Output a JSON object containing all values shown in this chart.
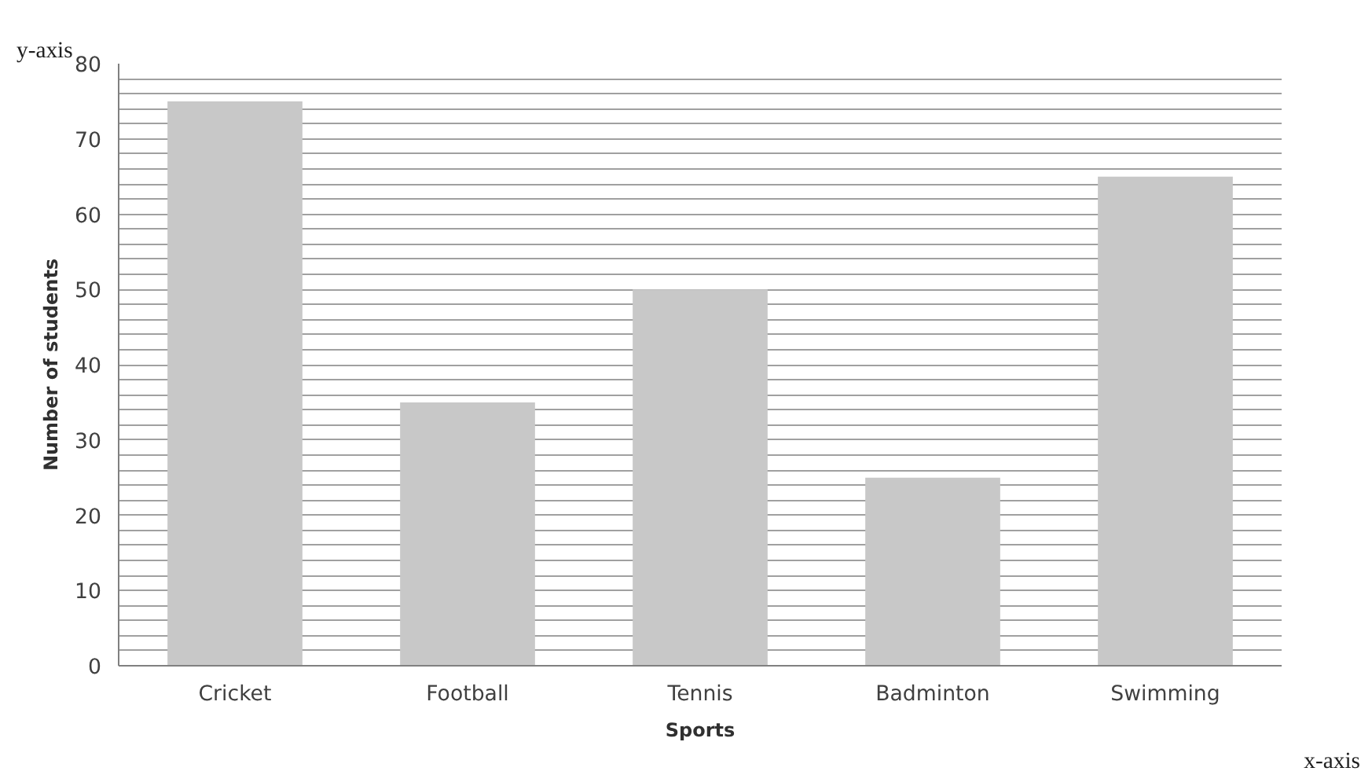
{
  "chart_data": {
    "type": "bar",
    "categories": [
      "Cricket",
      "Football",
      "Tennis",
      "Badminton",
      "Swimming"
    ],
    "values": [
      75,
      35,
      50,
      25,
      65
    ],
    "color": "#c8c8c8",
    "xlabel": "Sports",
    "ylabel": "Number of students",
    "annotations": [
      "y-axis",
      "x-axis"
    ],
    "ylim": [
      0,
      80
    ],
    "yticks": [
      0,
      {
        "value": 2,
        "label": null
      },
      {
        "value": 4,
        "label": null
      },
      {
        "value": 6,
        "label": null
      },
      {
        "value": 8,
        "label": null
      },
      10,
      {
        "value": 12,
        "label": null
      },
      {
        "value": 14,
        "label": null
      },
      {
        "value": 16,
        "label": null
      },
      {
        "value": 18,
        "label": null
      },
      20,
      {
        "value": 22,
        "label": null
      },
      {
        "value": 24,
        "label": null
      },
      {
        "value": 26,
        "label": null
      },
      {
        "value": 28,
        "label": null
      },
      30,
      {
        "value": 32,
        "label": null
      },
      {
        "value": 34,
        "label": null
      },
      {
        "value": 36,
        "label": null
      },
      {
        "value": 38,
        "label": null
      },
      40,
      {
        "value": 42,
        "label": null
      },
      {
        "value": 44,
        "label": null
      },
      {
        "value": 46,
        "label": null
      },
      {
        "value": 48,
        "label": null
      },
      50,
      {
        "value": 52,
        "label": null
      },
      {
        "value": 54,
        "label": null
      },
      {
        "value": 56,
        "label": null
      },
      {
        "value": 58,
        "label": null
      },
      60,
      {
        "value": 62,
        "label": null
      },
      {
        "value": 64,
        "label": null
      },
      {
        "value": 66,
        "label": null
      },
      {
        "value": 68,
        "label": null
      },
      70,
      {
        "value": 72,
        "label": null
      },
      {
        "value": 74,
        "label": null
      },
      {
        "value": 76,
        "label": null
      },
      {
        "value": 78,
        "label": null
      },
      80
    ],
    "grid": "y"
  }
}
